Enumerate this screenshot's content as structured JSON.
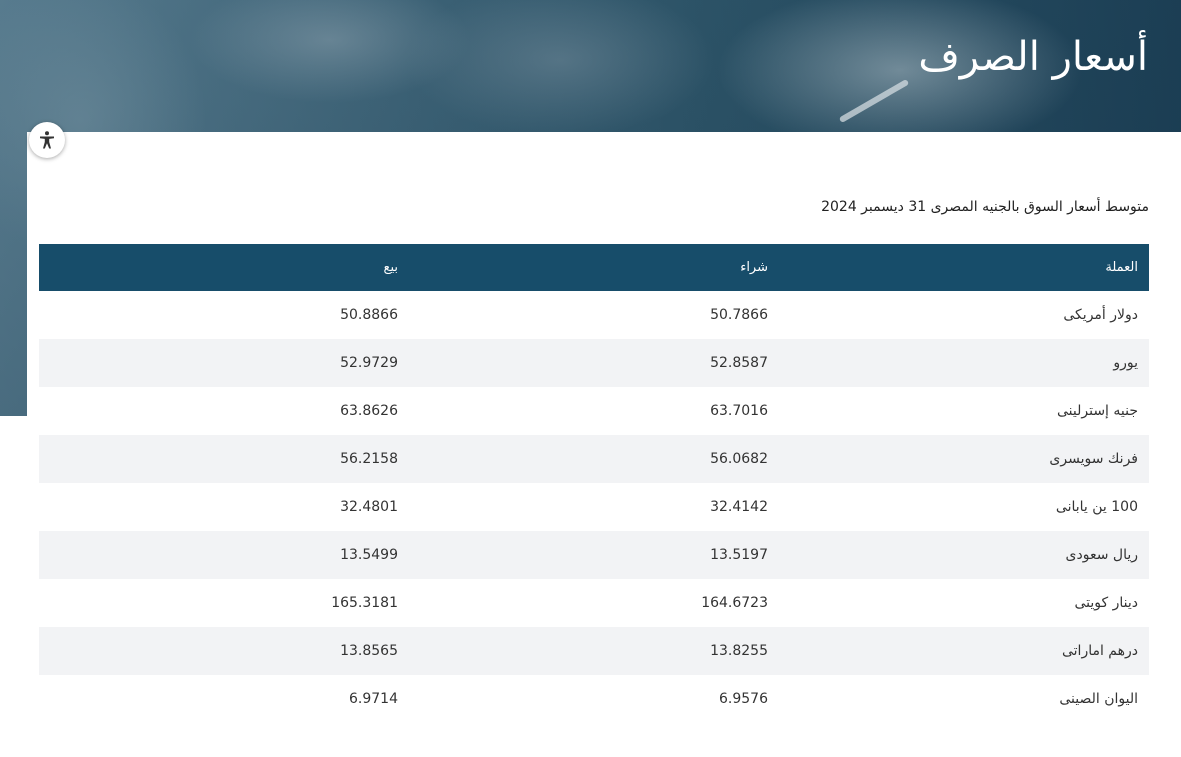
{
  "header": {
    "title": "أسعار الصرف"
  },
  "accessibility": {
    "icon": "accessibility-icon"
  },
  "subtitle": "متوسط أسعار السوق بالجنيه المصرى 31 ديسمبر 2024",
  "table": {
    "columns": {
      "currency": "العملة",
      "buy": "شراء",
      "sell": "بيع"
    },
    "rows": [
      {
        "currency": "دولار أمريكى",
        "buy": "50.7866",
        "sell": "50.8866"
      },
      {
        "currency": "يورو",
        "buy": "52.8587",
        "sell": "52.9729"
      },
      {
        "currency": "جنيه إسترلينى",
        "buy": "63.7016",
        "sell": "63.8626"
      },
      {
        "currency": "فرنك سويسرى",
        "buy": "56.0682",
        "sell": "56.2158"
      },
      {
        "currency": "100 ين يابانى",
        "buy": "32.4142",
        "sell": "32.4801"
      },
      {
        "currency": "ريال سعودى",
        "buy": "13.5197",
        "sell": "13.5499"
      },
      {
        "currency": "دينار كويتى",
        "buy": "164.6723",
        "sell": "165.3181"
      },
      {
        "currency": "درهم اماراتى",
        "buy": "13.8255",
        "sell": "13.8565"
      },
      {
        "currency": "اليوان الصينى",
        "buy": "6.9576",
        "sell": "6.9714"
      }
    ]
  },
  "colors": {
    "header_bg": "#174d6a",
    "stripe": "#f2f3f5"
  }
}
